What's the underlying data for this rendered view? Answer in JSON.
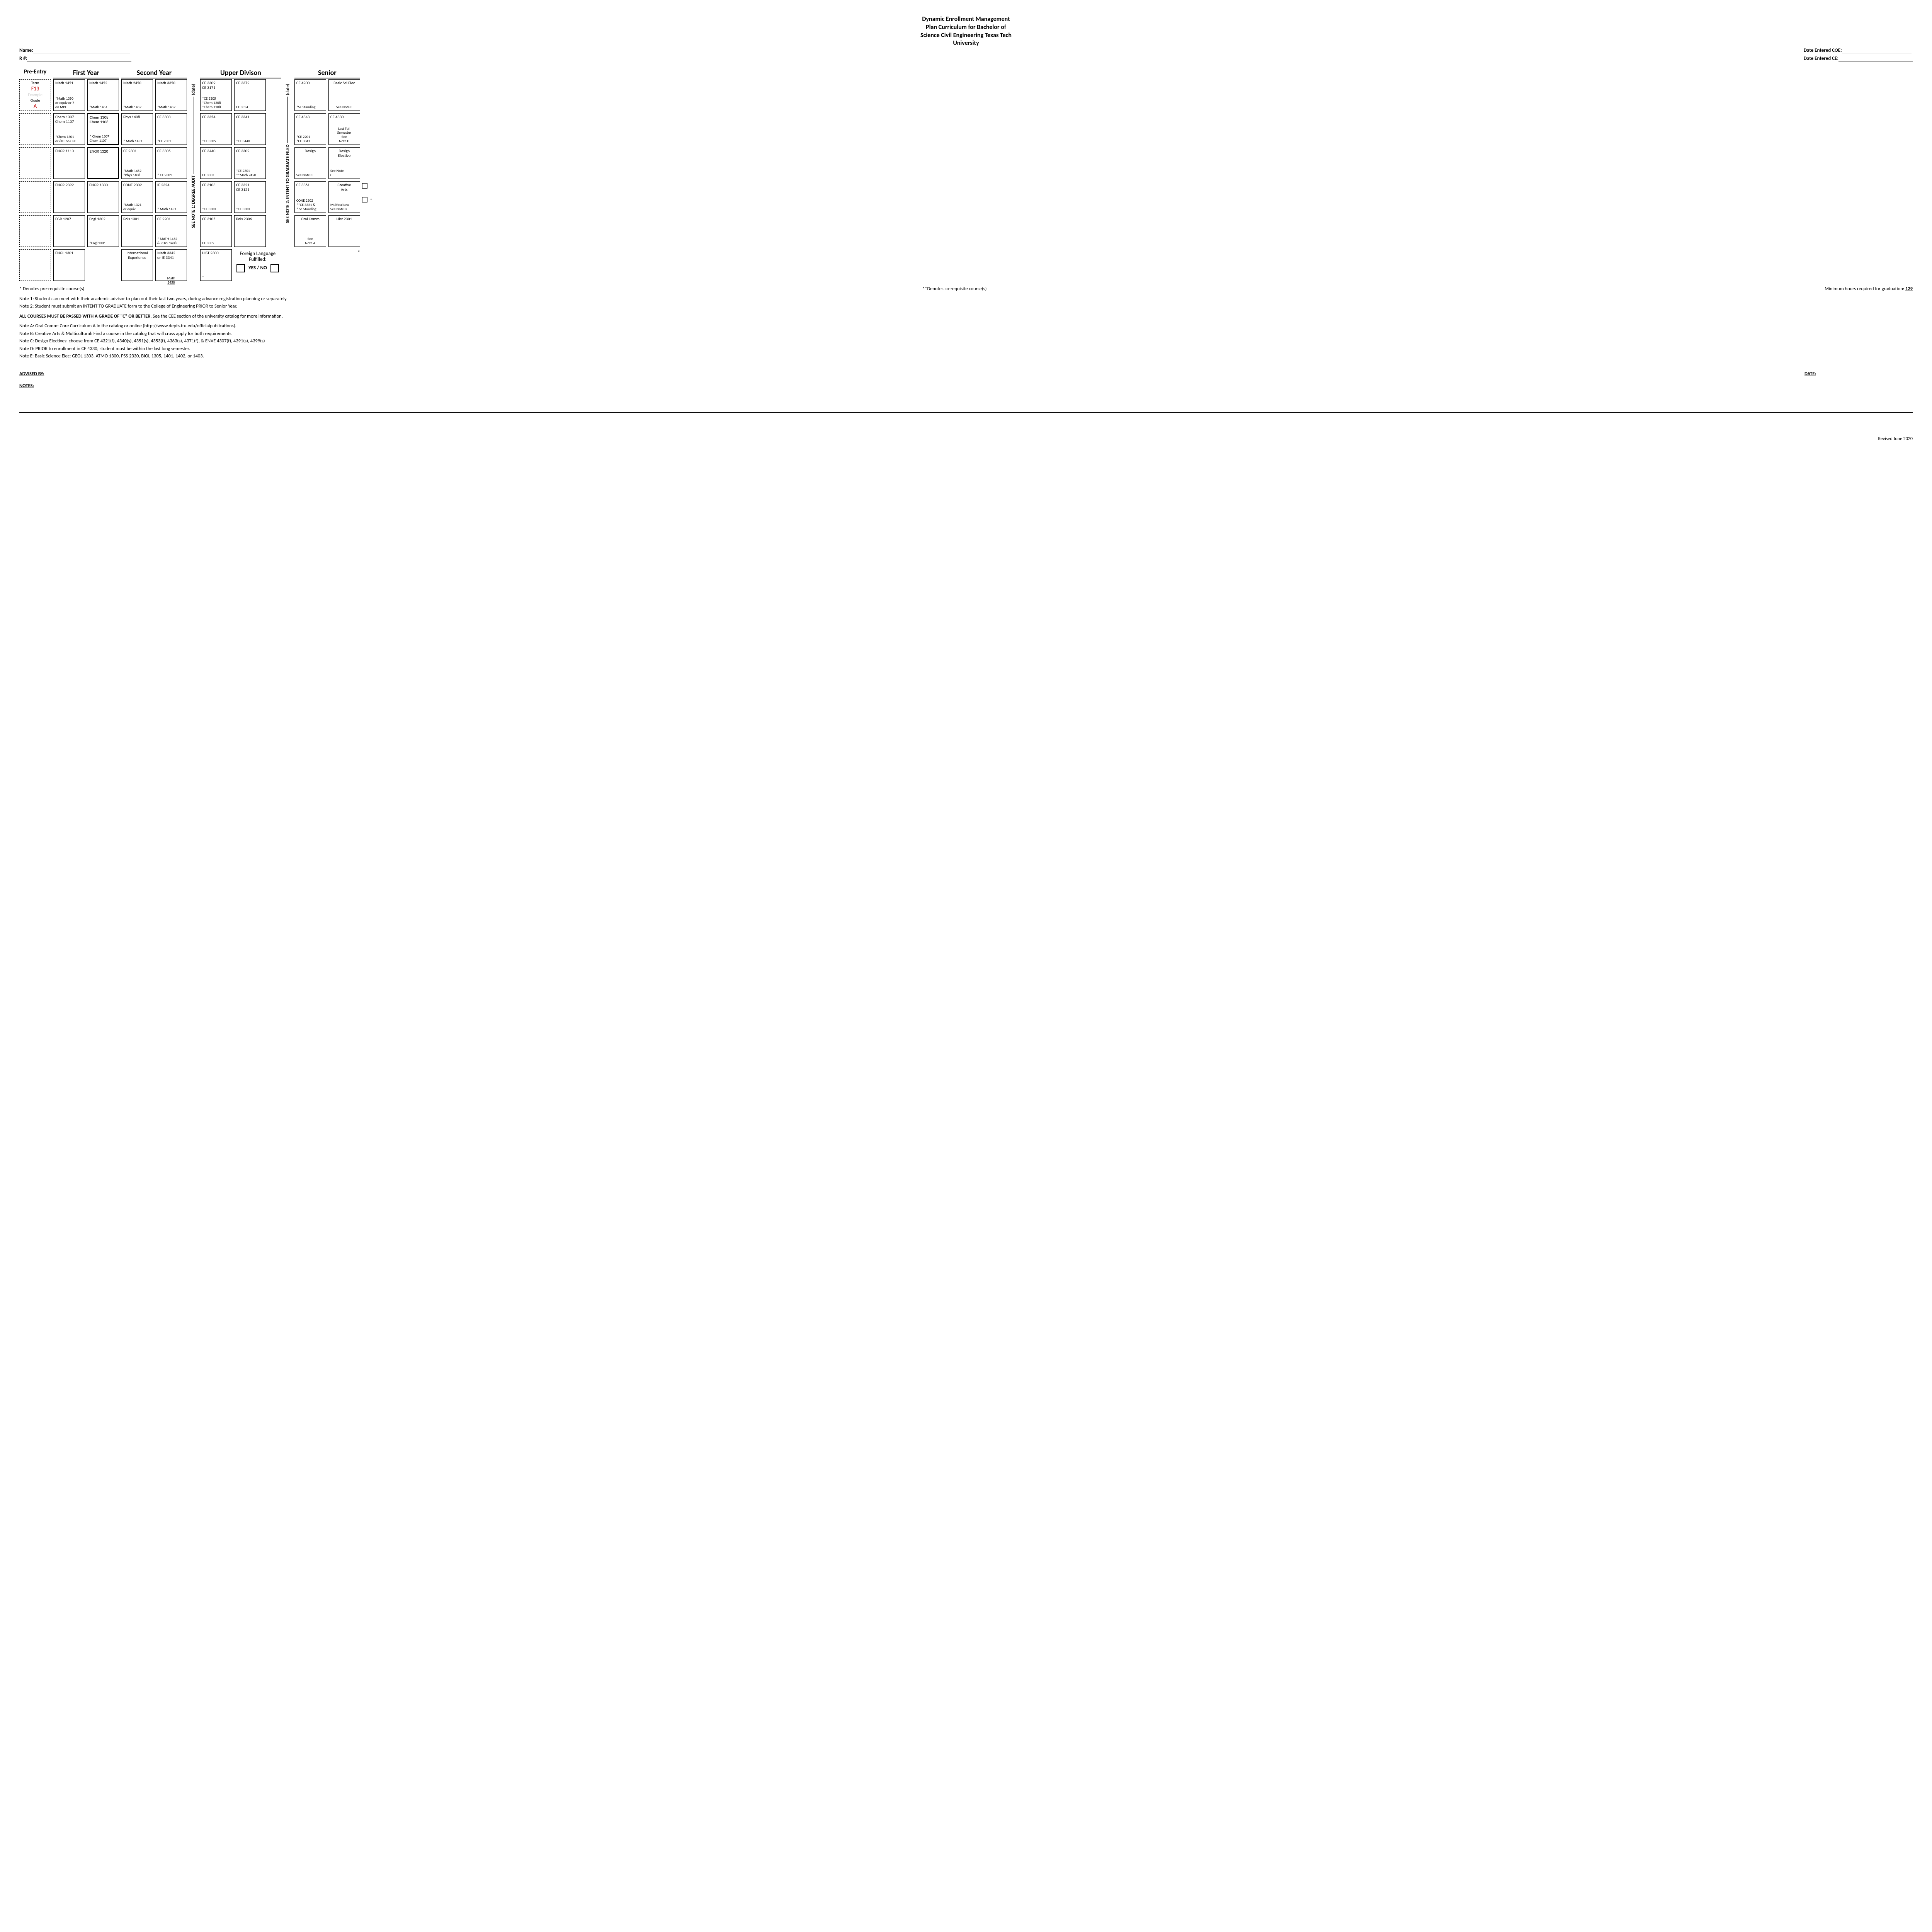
{
  "title_l1": "Dynamic Enrollment Management",
  "title_l2": "Plan Curriculum for Bachelor of",
  "title_l3": "Science Civil Engineering Texas Tech",
  "title_l4": "University",
  "name_label": "Name:",
  "rnum_label": "R #:",
  "date_coe_label": "Date Entered COE:",
  "date_ce_label": "Date Entered CE:",
  "col_preentry": "Pre-Entry",
  "col_first": "First Year",
  "col_second": "Second Year",
  "col_upper": "Upper Divison",
  "col_senior": "Senior",
  "example": {
    "term": "Term",
    "f13": "F13",
    "ex": "Example",
    "grade": "Grade",
    "a": "A"
  },
  "vert1": "SEE NOTE 1: DEGREE AUDIT",
  "vert1_date": "(date)",
  "vert2": "SEE NOTE 2: INTENT TO GRADUATE FILED",
  "vert2_date": "(date)",
  "fy": {
    "r1a": {
      "top": "Math 1451",
      "bot": "*Math 1350\nor equiv or 7\non MPE"
    },
    "r1b": {
      "top": "Math 1452",
      "bot": "*Math 1451"
    },
    "r2a": {
      "top": "Chem 1307\nChem 1107",
      "bot": "*Chem 1301\nor 60+ on CPE"
    },
    "r2b": {
      "top": "Chem 1308\nChem 1108",
      "bot": "* Chem 1307\nChem 1107"
    },
    "r3a": {
      "top": "ENGR 1110",
      "bot": ""
    },
    "r3b": {
      "top": "ENGR 1320",
      "bot": ""
    },
    "r4a": {
      "top": "ENGR 2392",
      "bot": ""
    },
    "r4b": {
      "top": "ENGR 1330",
      "bot": ""
    },
    "r5a": {
      "top": "EGR 1207",
      "bot": ""
    },
    "r5b": {
      "top": "Engl 1302",
      "bot": "*Engl 1301"
    },
    "r6a": {
      "top": "ENGL 1301",
      "bot": ""
    }
  },
  "sy": {
    "r1a": {
      "top": "Math 2450",
      "bot": "*Math 1452"
    },
    "r1b": {
      "top": "Math 3350",
      "bot": "*Math 1452"
    },
    "r2a": {
      "top": "Phys 1408",
      "bot": "*   Math 1451"
    },
    "r2b": {
      "top": "CE 3303",
      "bot": "*CE 2301"
    },
    "r3a": {
      "top": "CE 2301",
      "bot": "*Math 1452\n*Phys 1408"
    },
    "r3b": {
      "top": "CE 3305",
      "bot": "*   CE 2301"
    },
    "r4a": {
      "top": "CONE 2302",
      "bot": "*Math 1321\nor equiv."
    },
    "r4b": {
      "top": "IE 2324",
      "bot": "* Math 1451"
    },
    "r5a": {
      "top": "Pols 1301",
      "bot": ""
    },
    "r5b": {
      "top": "CE 2201",
      "bot": "*  MATH 1452\n& PHYS 1408"
    },
    "r6a": {
      "top": "International\nExperience",
      "bot": ""
    },
    "r6b": {
      "top": "Math 3342\nor IE 3341",
      "bot": "Math\n2450"
    }
  },
  "ud": {
    "r1a": {
      "top": "CE 3309\nCE 3171",
      "bot": "*CE 3305\n*Chem 1308\n*Chem 1108"
    },
    "r1b": {
      "top": "CE 3372",
      "bot": "CE 3354"
    },
    "r2a": {
      "top": "CE 3354",
      "bot": "*CE 3305"
    },
    "r2b": {
      "top": "CE 3341",
      "bot": "*CE 3440"
    },
    "r3a": {
      "top": "CE 3440",
      "bot": "CE 3303"
    },
    "r3b": {
      "top": "CE 3302",
      "bot": "*CE 2301\n**Math 2450"
    },
    "r4a": {
      "top": "CE 3103",
      "bot": "*CE 3303"
    },
    "r4b": {
      "top": "CE 3321\nCE 3121",
      "bot": "*CE 3303"
    },
    "r5a": {
      "top": "CE 3105",
      "bot": "CE 3305"
    },
    "r5b": {
      "top": "Pols 2306",
      "bot": ""
    },
    "r6a": {
      "top": "HIST 2300",
      "bot": "*"
    }
  },
  "sr": {
    "r1a": {
      "top": "CE 4200",
      "bot": "*Sr. Standing"
    },
    "r1b": {
      "top": "Basic Sci Elec",
      "bot": "See Note E"
    },
    "r2a": {
      "top": "CE 4343",
      "bot": "*CE 2201\n*CE 3341"
    },
    "r2b": {
      "top": "CE 4330",
      "bot": "Last Full\nSemester\nSee\nNote D"
    },
    "r3a": {
      "top": "Design",
      "bot": "See Note C"
    },
    "r3b": {
      "top": "Design\nElective",
      "bot": "See Note\nC"
    },
    "r4a": {
      "top": "CE 3361",
      "bot": "CONE 2302\n**CE 3321 &\n*   Sr. Standing"
    },
    "r4b": {
      "top": "Creative\nArts",
      "bot": "Multicultural\nSee Note B"
    },
    "r5a": {
      "top": "Oral Comm",
      "bot": "See\nNote A"
    },
    "r5b": {
      "top": "Hist 2301",
      "bot": ""
    }
  },
  "fl_label": "Foreign Language",
  "fl_fulfilled": "Fulfilled:",
  "fl_yesno": "YES   /   NO",
  "legend_pre": "* Denotes pre-requisite course(s)",
  "legend_co": "**Denotes co-requisite course(s)",
  "legend_min": "Minimum hours required for graduation:",
  "legend_min_val": "129",
  "note1": "Note 1:    Student can meet with their academic advisor to plan out their last two years, during advance registration planning or separately.",
  "note2": "Note 2:    Student must submit an INTENT TO GRADUATE form to the College of Engineering PRIOR to Senior Year.",
  "allcourses_a": "ALL COURSES MUST BE PASSED WITH A GRADE OF \"C\" OR BETTER",
  "allcourses_b": ". See the CEE section of the university catalog for more information.",
  "noteA": "Note A:   Oral Comm: Core Curriculum A in the catalog or online (http://www.depts.ttu.edu/officialpublications).",
  "noteB": "Note B:   Creative Arts & Multicultural: Find a course in the catalog that will cross apply for both requirements.",
  "noteC": "Note C:   Design Electives: choose from CE 4321(f),  4340(s),  4351(s), 4353(f), 4363(s), 4371(f), & ENVE 4307(f), 4391(s), 4399(s)",
  "noteD": "Note D:   PRIOR to enrollment in CE 4330, student must be within the last long semester.",
  "noteE": "Note E:  Basic Science Elec: GEOL 1303, ATMO 1300, PSS 2330, BIOL 1305, 1401, 1402, or 1403.",
  "advised_by": "ADVISED  BY:",
  "date_label": "DATE:",
  "notes_label": "NOTES:",
  "revised": "Revised June 2020"
}
